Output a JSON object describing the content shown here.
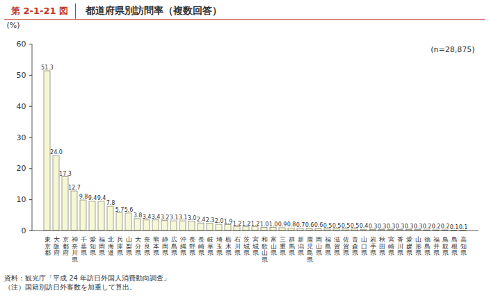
{
  "chart_data": {
    "type": "bar",
    "figure_label": "第 2-1-21 図",
    "title": "都道府県別訪問率（複数回答）",
    "y_label": "(%)",
    "annotation": "(n=28,875)",
    "notes": [
      "資料：観光庁「平成 24 年訪日外国人消費動向調査」",
      "（注）国籍別訪日外客数を加重して算出。"
    ],
    "categories": [
      "東京都",
      "大阪府",
      "京都府",
      "神奈川県",
      "千葉県",
      "愛知県",
      "福岡県",
      "北海道",
      "兵庫県",
      "山梨県",
      "大分県",
      "奈良県",
      "熊本県",
      "静岡県",
      "広島県",
      "沖縄県",
      "長野県",
      "長崎県",
      "岐阜県",
      "埼玉県",
      "栃木県",
      "石川県",
      "茨城県",
      "宮城県",
      "和歌山県",
      "富山県",
      "三重県",
      "群馬県",
      "新潟県",
      "鹿児島県",
      "岡山県",
      "福島県",
      "滋賀県",
      "佐賀県",
      "青森県",
      "山口県",
      "岩手県",
      "秋田県",
      "宮崎県",
      "香川県",
      "愛媛県",
      "山形県",
      "徳島県",
      "福井県",
      "鳥取県",
      "島根県",
      "高知県"
    ],
    "values": [
      51.3,
      24.0,
      17.3,
      12.7,
      9.8,
      9.4,
      9.4,
      7.8,
      5.7,
      5.6,
      3.8,
      3.4,
      3.4,
      3.2,
      3.1,
      3.1,
      3.0,
      2.4,
      2.3,
      2.0,
      1.9,
      1.2,
      1.2,
      1.2,
      1.0,
      1.0,
      0.9,
      0.8,
      0.7,
      0.6,
      0.6,
      0.5,
      0.5,
      0.5,
      0.5,
      0.4,
      0.3,
      0.3,
      0.3,
      0.3,
      0.3,
      0.3,
      0.2,
      0.2,
      0.2,
      0.1,
      0.1
    ],
    "value_labels": [
      "51.3",
      "24.0",
      "17.3",
      "12.7",
      "9.8",
      "9.4",
      "9.4",
      "7.8",
      "5.7",
      "5.6",
      "3.8",
      "3.4",
      "3.4",
      "3.2",
      "3.1",
      "3.1",
      "3.0",
      "2.4",
      "2.3",
      "2.0",
      "1.9",
      "1.2",
      "1.2",
      "1.2",
      "1.0",
      "1.0",
      "0.9",
      "0.8",
      "0.7",
      "0.6",
      "0.6",
      "0.5",
      "0.5",
      "0.5",
      "0.5",
      "0.4",
      "0.3",
      "0.3",
      "0.3",
      "0.3",
      "0.3",
      "0.3",
      "0.2",
      "0.2",
      "0.2",
      "0.1",
      "0.1"
    ],
    "color": "#f6f7d4",
    "ylim": [
      0,
      60
    ],
    "yticks": [
      0,
      10,
      20,
      30,
      40,
      50,
      60
    ],
    "grid": false,
    "data_labels": true
  }
}
